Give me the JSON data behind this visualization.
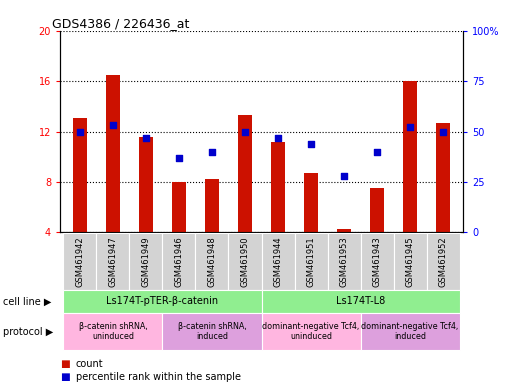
{
  "title": "GDS4386 / 226436_at",
  "samples": [
    "GSM461942",
    "GSM461947",
    "GSM461949",
    "GSM461946",
    "GSM461948",
    "GSM461950",
    "GSM461944",
    "GSM461951",
    "GSM461953",
    "GSM461943",
    "GSM461945",
    "GSM461952"
  ],
  "bar_values": [
    13.1,
    16.5,
    11.6,
    8.0,
    8.2,
    13.3,
    11.2,
    8.7,
    4.3,
    7.5,
    16.0,
    12.7
  ],
  "dot_values": [
    50,
    53,
    47,
    37,
    40,
    50,
    47,
    44,
    28,
    40,
    52,
    50
  ],
  "bar_color": "#cc1100",
  "dot_color": "#0000cc",
  "ylim_left": [
    4,
    20
  ],
  "ylim_right": [
    0,
    100
  ],
  "yticks_left": [
    4,
    8,
    12,
    16,
    20
  ],
  "yticks_right": [
    0,
    25,
    50,
    75,
    100
  ],
  "ytick_labels_left": [
    "4",
    "8",
    "12",
    "16",
    "20"
  ],
  "ytick_labels_right": [
    "0",
    "25",
    "50",
    "75",
    "100%"
  ],
  "cell_line_groups": [
    {
      "label": "Ls174T-pTER-β-catenin",
      "start": 0,
      "end": 5,
      "color": "#90ee90"
    },
    {
      "label": "Ls174T-L8",
      "start": 6,
      "end": 11,
      "color": "#90ee90"
    }
  ],
  "protocol_groups": [
    {
      "label": "β-catenin shRNA,\nuninduced",
      "start": 0,
      "end": 2,
      "color": "#ffb6e0"
    },
    {
      "label": "β-catenin shRNA,\ninduced",
      "start": 3,
      "end": 5,
      "color": "#dda0dd"
    },
    {
      "label": "dominant-negative Tcf4,\nuninduced",
      "start": 6,
      "end": 8,
      "color": "#ffb6e0"
    },
    {
      "label": "dominant-negative Tcf4,\ninduced",
      "start": 9,
      "end": 11,
      "color": "#dda0dd"
    }
  ],
  "legend_count_label": "count",
  "legend_pct_label": "percentile rank within the sample",
  "cell_line_label": "cell line",
  "protocol_label": "protocol",
  "bar_bottom": 4,
  "sample_box_color": "#d3d3d3",
  "bar_width": 0.4
}
